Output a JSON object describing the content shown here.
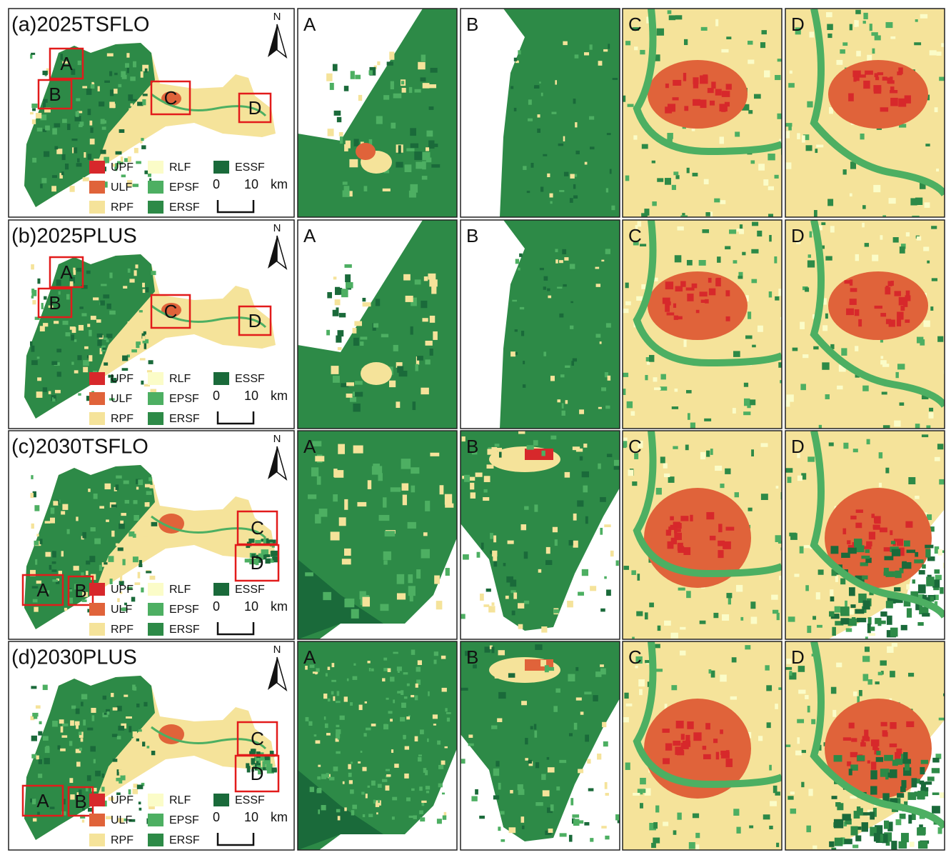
{
  "north": "N",
  "legend": [
    {
      "label": "UPF",
      "color": "#d7282b"
    },
    {
      "label": "ULF",
      "color": "#e0633a"
    },
    {
      "label": "RPF",
      "color": "#f5e39a"
    },
    {
      "label": "RLF",
      "color": "#fbfcc8"
    },
    {
      "label": "EPSF",
      "color": "#4daf62"
    },
    {
      "label": "ERSF",
      "color": "#2d8a47"
    },
    {
      "label": "ESSF",
      "color": "#1a6a3a"
    }
  ],
  "scale": {
    "start": "0",
    "end": "10",
    "unit": "km"
  },
  "rows": [
    {
      "title": "(a)2025TSFLO",
      "boxes": [
        "A",
        "B",
        "C",
        "D"
      ],
      "zooms": [
        "A",
        "B",
        "C",
        "D"
      ]
    },
    {
      "title": "(b)2025PLUS",
      "boxes": [
        "A",
        "B",
        "C",
        "D"
      ],
      "zooms": [
        "A",
        "B",
        "C",
        "D"
      ]
    },
    {
      "title": "(c)2030TSFLO",
      "boxes": [
        "A",
        "B",
        "C",
        "D"
      ],
      "zooms": [
        "A",
        "B",
        "C",
        "D"
      ]
    },
    {
      "title": "(d)2030PLUS",
      "boxes": [
        "A",
        "B",
        "C",
        "D"
      ],
      "zooms": [
        "A",
        "B",
        "C",
        "D"
      ]
    }
  ]
}
